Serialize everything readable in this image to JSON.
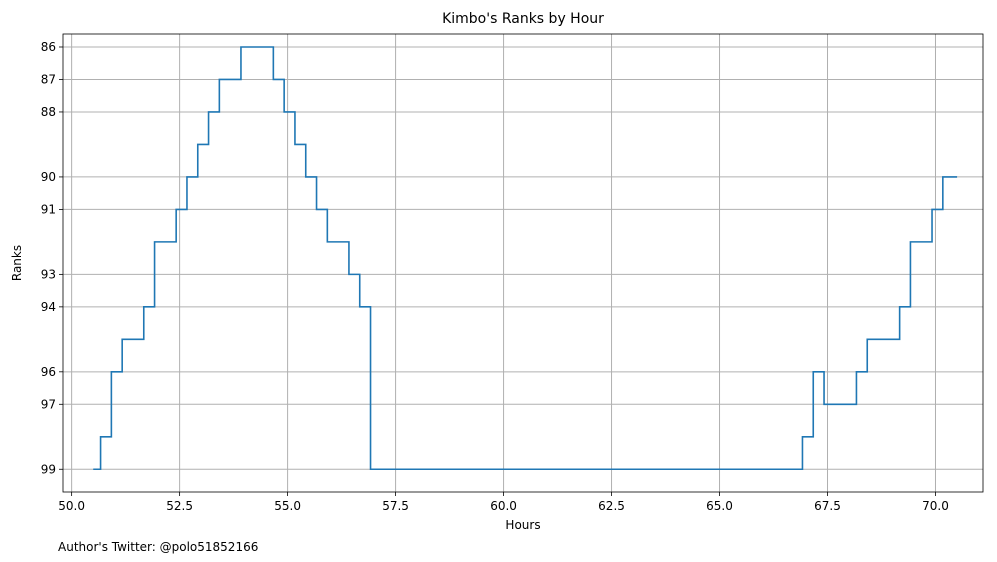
{
  "chart_data": {
    "type": "line",
    "step": "post",
    "title": "Kimbo's Ranks by Hour",
    "xlabel": "Hours",
    "ylabel": "Ranks",
    "xlim": [
      49.8,
      71.1
    ],
    "ylim": [
      99.7,
      85.6
    ],
    "y_inverted": true,
    "grid": true,
    "xticks": [
      50.0,
      52.5,
      55.0,
      57.5,
      60.0,
      62.5,
      65.0,
      67.5,
      70.0
    ],
    "xtick_labels": [
      "50.0",
      "52.5",
      "55.0",
      "57.5",
      "60.0",
      "62.5",
      "65.0",
      "67.5",
      "70.0"
    ],
    "yticks": [
      86,
      87,
      88,
      90,
      91,
      93,
      94,
      96,
      97,
      99
    ],
    "ytick_labels": [
      "86",
      "87",
      "88",
      "90",
      "91",
      "93",
      "94",
      "96",
      "97",
      "99"
    ],
    "series": [
      {
        "color": "#1f77b4",
        "x": [
          50.5,
          50.67,
          50.92,
          51.17,
          51.67,
          51.92,
          52.42,
          52.67,
          52.92,
          53.17,
          53.42,
          53.92,
          54.67,
          54.92,
          55.17,
          55.42,
          55.67,
          55.92,
          56.42,
          56.67,
          56.92,
          66.92,
          67.17,
          67.42,
          68.17,
          68.42,
          69.17,
          69.42,
          69.92,
          70.17,
          70.5
        ],
        "y": [
          99,
          98,
          96,
          95,
          94,
          92,
          91,
          90,
          89,
          88,
          87,
          86,
          87,
          88,
          89,
          90,
          91,
          92,
          93,
          94,
          99,
          98,
          96,
          97,
          96,
          95,
          94,
          92,
          91,
          90,
          90
        ]
      }
    ]
  },
  "footnote": "Author's Twitter: @polo51852166"
}
